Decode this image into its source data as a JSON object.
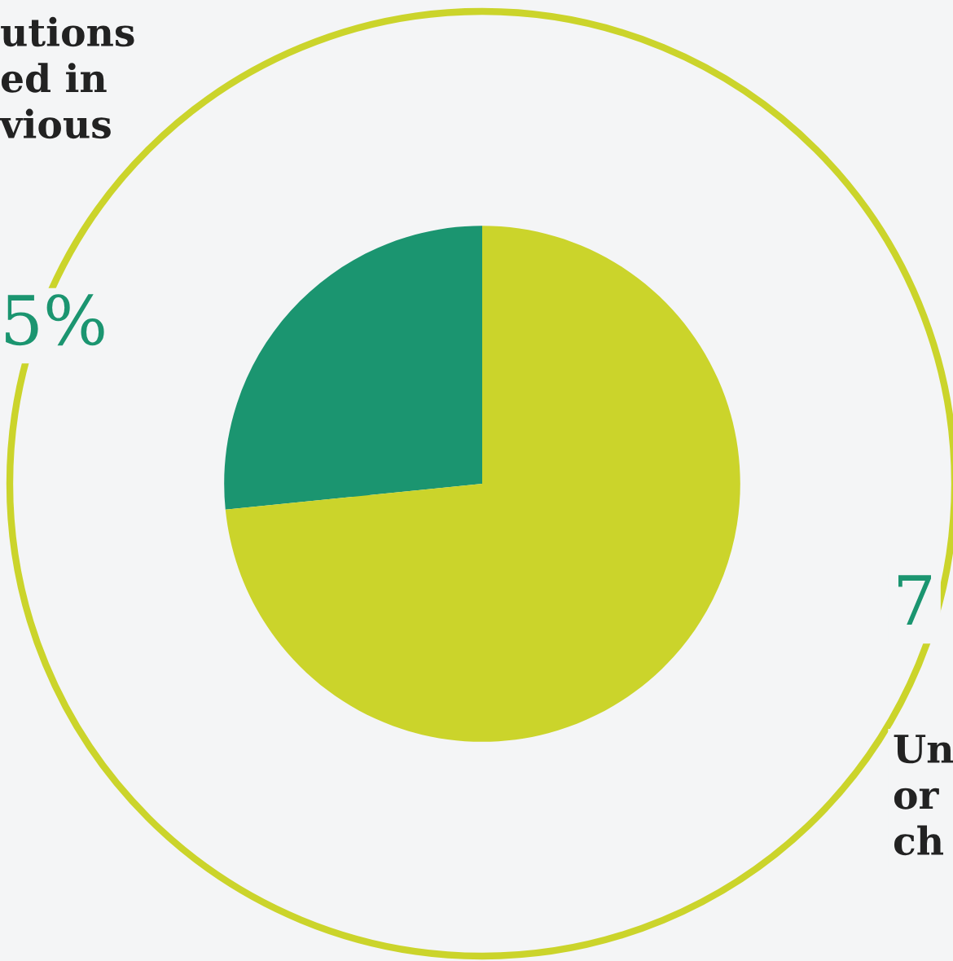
{
  "chart_data": {
    "type": "pie",
    "categories": [
      null,
      null
    ],
    "values": [
      26.6,
      73.4
    ],
    "colors": [
      "#1b9570",
      "#cbd42b"
    ],
    "annotations": [
      "utions\ned in\nvious",
      "5%",
      "7",
      "Un\nor\nch"
    ]
  }
}
